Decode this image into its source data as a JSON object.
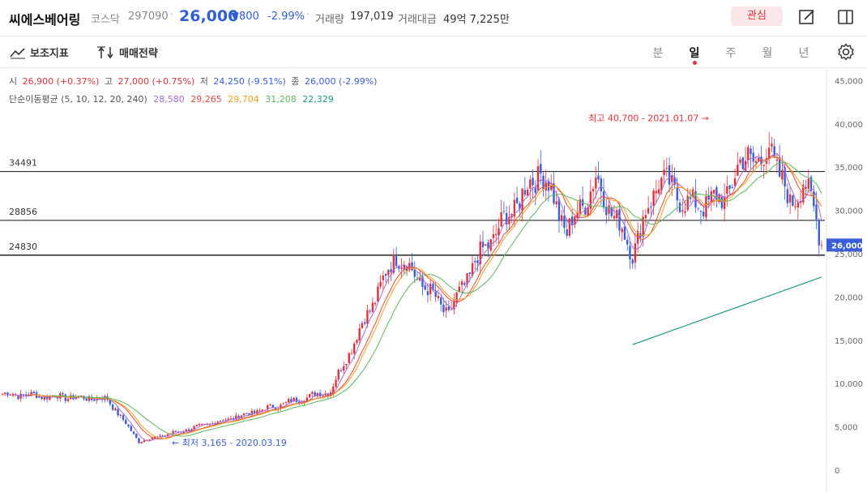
{
  "header": {
    "stock_name": "씨에스베어링",
    "market": "코스닥",
    "code": "297090",
    "separator": "·",
    "price": "26,000",
    "change": "▼800",
    "change_pct": "-2.99%",
    "volume_label": "거래량",
    "volume_value": "197,019",
    "amount_label": "거래대금",
    "amount_value": "49억 7,225만",
    "favorite_label": "관심"
  },
  "toolbar": {
    "indicator_label": "보조지표",
    "strategy_label": "매매전략",
    "periods": [
      "분",
      "일",
      "주",
      "월",
      "년"
    ],
    "active_period": "일"
  },
  "ohlc": {
    "open_label": "시",
    "open_value": "26,900 (+0.37%)",
    "high_label": "고",
    "high_value": "27,000 (+0.75%)",
    "low_label": "저",
    "low_value": "24,250 (-9.51%)",
    "close_label": "종",
    "close_value": "26,000 (-2.99%)"
  },
  "moving_averages": {
    "label": "단순이동평균 (5, 10, 12, 20, 240)",
    "values": [
      {
        "value": "28,580",
        "color": "#a36cd8"
      },
      {
        "value": "29,265",
        "color": "#e84a3c"
      },
      {
        "value": "29,704",
        "color": "#f0a020"
      },
      {
        "value": "31,208",
        "color": "#5cb85c"
      },
      {
        "value": "22,329",
        "color": "#1f9a8a"
      }
    ]
  },
  "colors": {
    "up": "#e0323c",
    "down": "#3a5ed8",
    "ma5": "#a36cd8",
    "ma10": "#e84a3c",
    "ma12": "#f0a020",
    "ma20": "#5cb85c",
    "ma240": "#1f9a8a",
    "accent": "#2f5fd0"
  },
  "chart_data": {
    "type": "candlestick",
    "y_axis": {
      "min": 0,
      "max": 45000,
      "ticks": [
        "45,000",
        "40,000",
        "35,000",
        "30,000",
        "25,000",
        "20,000",
        "15,000",
        "10,000",
        "5,000",
        "0"
      ]
    },
    "horizontal_lines": [
      {
        "label": "34491",
        "value": 34491
      },
      {
        "label": "28856",
        "value": 28856
      },
      {
        "label": "24830",
        "value": 24830
      }
    ],
    "current_price": {
      "label": "26,000",
      "value": 26000
    },
    "high_annotation": {
      "text": "최고 40,700 - 2021.01.07",
      "value": 40700
    },
    "low_annotation": {
      "text": "최저 3,165 - 2020.03.19",
      "value": 3165
    },
    "price_anchors": [
      {
        "idx": 0,
        "price": 8800
      },
      {
        "idx": 40,
        "price": 8200
      },
      {
        "idx": 52,
        "price": 3300
      },
      {
        "idx": 90,
        "price": 6200
      },
      {
        "idx": 125,
        "price": 9200
      },
      {
        "idx": 150,
        "price": 25000
      },
      {
        "idx": 170,
        "price": 18000
      },
      {
        "idx": 180,
        "price": 24000
      }
    ],
    "candle_count": 313
  }
}
